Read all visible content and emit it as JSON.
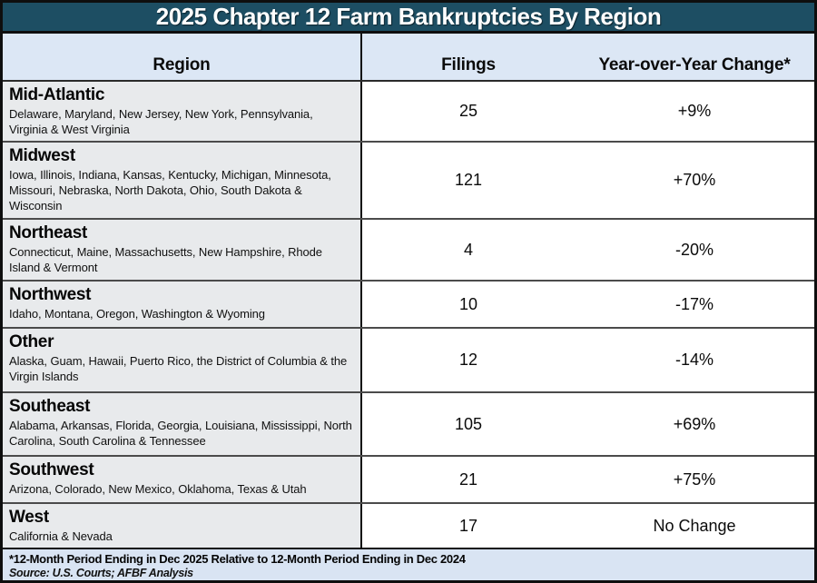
{
  "title": "2025 Chapter 12 Farm Bankruptcies By Region",
  "columns": {
    "region": "Region",
    "filings": "Filings",
    "change": "Year-over-Year Change*"
  },
  "table": {
    "rows": [
      {
        "region": "Mid-Atlantic",
        "states": "Delaware, Maryland, New Jersey, New York, Pennsylvania, Virginia & West Virginia",
        "filings": "25",
        "change": "+9%"
      },
      {
        "region": "Midwest",
        "states": "Iowa, Illinois, Indiana, Kansas, Kentucky, Michigan, Minnesota, Missouri, Nebraska, North Dakota, Ohio, South Dakota & Wisconsin",
        "filings": "121",
        "change": "+70%"
      },
      {
        "region": "Northeast",
        "states": "Connecticut, Maine, Massachusetts, New Hampshire, Rhode Island & Vermont",
        "filings": "4",
        "change": "-20%"
      },
      {
        "region": "Northwest",
        "states": "Idaho, Montana, Oregon, Washington & Wyoming",
        "filings": "10",
        "change": "-17%"
      },
      {
        "region": "Other",
        "states": "Alaska, Guam, Hawaii, Puerto Rico, the District of Columbia & the Virgin Islands",
        "filings": "12",
        "change": "-14%"
      },
      {
        "region": "Southeast",
        "states": "Alabama, Arkansas, Florida, Georgia, Louisiana, Mississippi, North Carolina, South Carolina & Tennessee",
        "filings": "105",
        "change": "+69%"
      },
      {
        "region": "Southwest",
        "states": "Arizona, Colorado, New Mexico, Oklahoma, Texas & Utah",
        "filings": "21",
        "change": "+75%"
      },
      {
        "region": "West",
        "states": "California & Nevada",
        "filings": "17",
        "change": "No Change"
      }
    ]
  },
  "footnote": "*12-Month Period Ending in Dec 2025 Relative to 12-Month Period Ending in Dec 2024",
  "source": "Source: U.S. Courts; AFBF Analysis",
  "colors": {
    "title_bg": "#1d4e63",
    "header_bg": "#dce7f5",
    "region_cell_bg": "#e8eaec",
    "footer_bg": "#d9e4f3",
    "row_divider": "#4b4b4b"
  },
  "chart_data": {
    "type": "table",
    "title": "2025 Chapter 12 Farm Bankruptcies By Region",
    "columns": [
      "Region",
      "Filings",
      "Year-over-Year Change*"
    ],
    "rows": [
      [
        "Mid-Atlantic",
        25,
        "+9%"
      ],
      [
        "Midwest",
        121,
        "+70%"
      ],
      [
        "Northeast",
        4,
        "-20%"
      ],
      [
        "Northwest",
        10,
        "-17%"
      ],
      [
        "Other",
        12,
        "-14%"
      ],
      [
        "Southeast",
        105,
        "+69%"
      ],
      [
        "Southwest",
        21,
        "+75%"
      ],
      [
        "West",
        17,
        "No Change"
      ]
    ],
    "footnote": "*12-Month Period Ending in Dec 2025 Relative to 12-Month Period Ending in Dec 2024",
    "source": "Source: U.S. Courts; AFBF Analysis"
  }
}
